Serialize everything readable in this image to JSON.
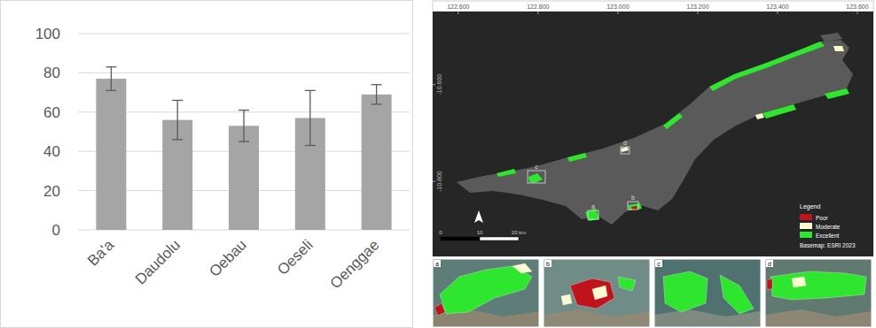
{
  "chart_data": {
    "type": "bar",
    "categories": [
      "Ba'a",
      "Daudolu",
      "Oebau",
      "Oeseli",
      "Oenggae"
    ],
    "values": [
      77,
      56,
      53,
      57,
      69
    ],
    "errors": [
      6,
      10,
      8,
      14,
      5
    ],
    "color": "#a5a5a5",
    "ylim": [
      0,
      100
    ],
    "yticks": [
      0,
      20,
      40,
      60,
      80,
      100
    ],
    "grid": true
  },
  "map": {
    "xlim": [
      122.536,
      123.64
    ],
    "ylim": [
      -10.955,
      -10.449
    ],
    "xticks": [
      {
        "value": 122.6,
        "label": "122.600"
      },
      {
        "value": 122.8,
        "label": "122.800"
      },
      {
        "value": 123.0,
        "label": "123.000"
      },
      {
        "value": 123.2,
        "label": "123.200"
      },
      {
        "value": 123.4,
        "label": "123.400"
      },
      {
        "value": 123.6,
        "label": "123.600"
      }
    ],
    "yticks": [
      {
        "value": -10.6,
        "label": "-10.600"
      },
      {
        "value": -10.8,
        "label": "-10.800"
      }
    ],
    "legend": {
      "title": "Legend",
      "items": [
        {
          "label": "Poor",
          "color": "#c0141c"
        },
        {
          "label": "Moderate",
          "color": "#fdfbd0"
        },
        {
          "label": "Excellent",
          "color": "#2ee62e"
        }
      ]
    },
    "basemap": "Basemap: ESRI 2023",
    "scale_bar": {
      "ticks": [
        0,
        10,
        {
          "value": 20,
          "label": "20 km"
        }
      ]
    },
    "insets": [
      "a",
      "b",
      "c",
      "d"
    ]
  }
}
